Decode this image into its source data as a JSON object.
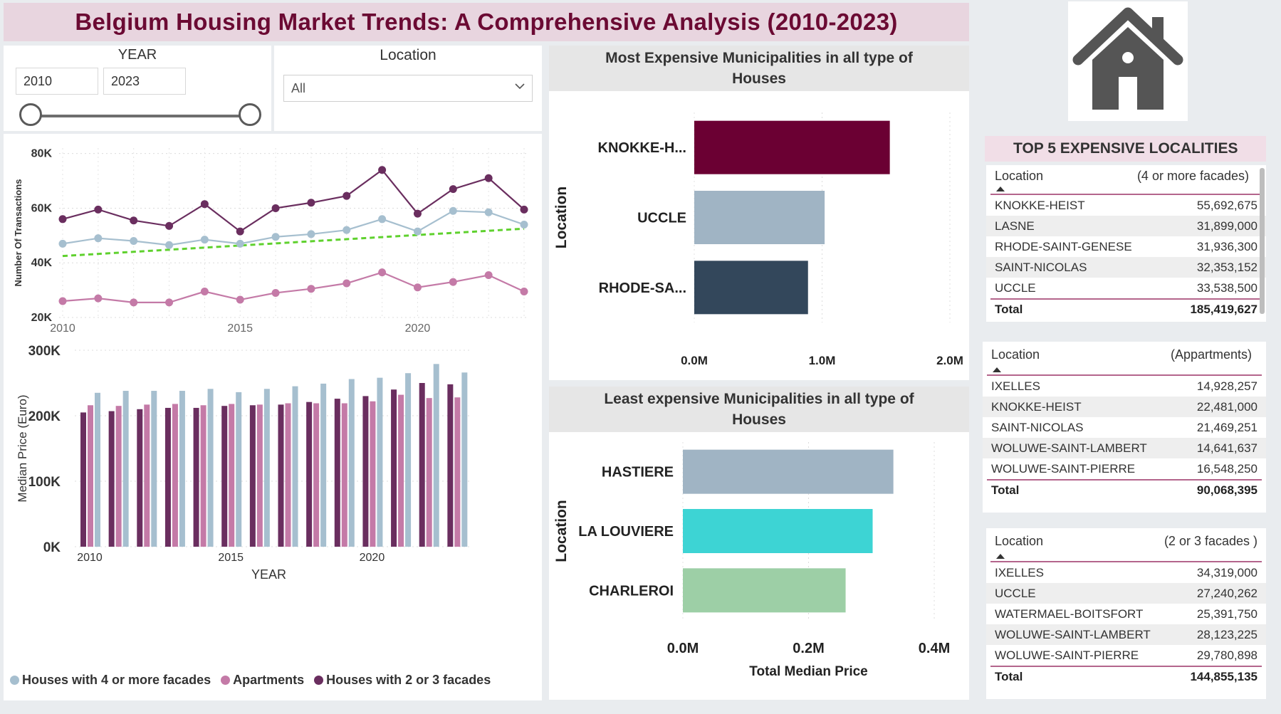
{
  "title": "Belgium Housing Market Trends: A Comprehensive Analysis (2010-2023)",
  "colors": {
    "houses4": "#a6bfcf",
    "apartments": "#c47aa7",
    "houses23": "#6a2e5f",
    "trend": "#5fd12e",
    "accent": "#6b0033",
    "slate": "#33475b",
    "teal": "#3dd4d4",
    "green": "#9dcfa6"
  },
  "year_slicer": {
    "label": "YEAR",
    "from": "2010",
    "to": "2023"
  },
  "location_slicer": {
    "label": "Location",
    "value": "All"
  },
  "icon": "house-icon",
  "line_chart": {
    "type": "line",
    "ylabel": "Number Of Transactions",
    "x": [
      2010,
      2011,
      2012,
      2013,
      2014,
      2015,
      2016,
      2017,
      2018,
      2019,
      2020,
      2021,
      2022,
      2023
    ],
    "x_ticks": [
      "2010",
      "2015",
      "2020"
    ],
    "y_ticks": [
      "20K",
      "40K",
      "60K",
      "80K"
    ],
    "ylim": [
      20000,
      82000
    ],
    "series": [
      {
        "key": "houses23",
        "values": [
          56000,
          59500,
          55500,
          53500,
          61500,
          51500,
          60000,
          62000,
          64500,
          74000,
          58000,
          67000,
          71000,
          59500
        ]
      },
      {
        "key": "houses4",
        "values": [
          47000,
          49000,
          48000,
          46500,
          48500,
          47000,
          49500,
          50500,
          52000,
          56000,
          51500,
          59000,
          58500,
          54000
        ]
      },
      {
        "key": "apartments",
        "values": [
          26000,
          27000,
          25500,
          25500,
          29500,
          26500,
          29000,
          30500,
          32500,
          36500,
          31000,
          33000,
          35500,
          29500
        ]
      }
    ],
    "trendline": [
      42500,
      52500
    ]
  },
  "bar_chart": {
    "type": "bar",
    "ylabel": "Median Price (Euro)",
    "xlabel": "YEAR",
    "x": [
      2010,
      2011,
      2012,
      2013,
      2014,
      2015,
      2016,
      2017,
      2018,
      2019,
      2020,
      2021,
      2022,
      2023
    ],
    "x_ticks": [
      "2010",
      "2015",
      "2020"
    ],
    "y_ticks": [
      "0K",
      "100K",
      "200K",
      "300K"
    ],
    "ylim": [
      0,
      300000
    ],
    "series": [
      {
        "name": "Houses with 2 or 3 facades",
        "key": "houses23",
        "values": [
          205000,
          207000,
          210000,
          212000,
          212000,
          215000,
          216000,
          217000,
          221000,
          226000,
          230000,
          240000,
          250000,
          248000
        ]
      },
      {
        "name": "Apartments",
        "key": "apartments",
        "values": [
          216000,
          215000,
          217000,
          218000,
          216000,
          218000,
          217000,
          219000,
          219000,
          219000,
          222000,
          232000,
          227000,
          228000
        ]
      },
      {
        "name": "Houses with 4 or more facades",
        "key": "houses4",
        "values": [
          235000,
          238000,
          238000,
          238000,
          241000,
          236000,
          241000,
          245000,
          249000,
          256000,
          258000,
          265000,
          279000,
          266000
        ]
      }
    ],
    "legend": [
      {
        "label": "Houses with 4 or more facades",
        "key": "houses4"
      },
      {
        "label": "Apartments",
        "key": "apartments"
      },
      {
        "label": "Houses with 2 or 3 facades",
        "key": "houses23"
      }
    ]
  },
  "most_expensive": {
    "title": "Most Expensive Municipalities in all type of Houses",
    "type": "bar",
    "ylabel": "Location",
    "categories": [
      "KNOKKE-H...",
      "UCCLE",
      "RHODE-SA..."
    ],
    "values": [
      1.53,
      1.02,
      0.89
    ],
    "colors": [
      "#6b0033",
      "#a0b4c4",
      "#33475b"
    ],
    "x_ticks": [
      "0.0M",
      "1.0M",
      "2.0M"
    ],
    "xlim": [
      0,
      2.0
    ]
  },
  "least_expensive": {
    "title": "Least expensive Municipalities in all type of Houses",
    "type": "bar",
    "ylabel": "Location",
    "xlabel": "Total Median Price",
    "categories": [
      "HASTIERE",
      "LA LOUVIERE",
      "CHARLEROI"
    ],
    "values": [
      0.335,
      0.302,
      0.259
    ],
    "colors": [
      "#a0b4c4",
      "#3dd4d4",
      "#9dcfa6"
    ],
    "x_ticks": [
      "0.0M",
      "0.2M",
      "0.4M"
    ],
    "xlim": [
      0,
      0.4
    ]
  },
  "tables": {
    "heading": "TOP 5 EXPENSIVE LOCALITIES",
    "t1": {
      "col1": "Location",
      "col2": "(4 or more facades)",
      "rows": [
        [
          "KNOKKE-HEIST",
          "55,692,675"
        ],
        [
          "LASNE",
          "31,899,000"
        ],
        [
          "RHODE-SAINT-GENESE",
          "31,936,300"
        ],
        [
          "SAINT-NICOLAS",
          "32,353,152"
        ],
        [
          "UCCLE",
          "33,538,500"
        ]
      ],
      "total_label": "Total",
      "total": "185,419,627"
    },
    "t2": {
      "col1": "Location",
      "col2": "(Appartments)",
      "rows": [
        [
          "IXELLES",
          "14,928,257"
        ],
        [
          "KNOKKE-HEIST",
          "22,481,000"
        ],
        [
          "SAINT-NICOLAS",
          "21,469,251"
        ],
        [
          "WOLUWE-SAINT-LAMBERT",
          "14,641,637"
        ],
        [
          "WOLUWE-SAINT-PIERRE",
          "16,548,250"
        ]
      ],
      "total_label": "Total",
      "total": "90,068,395"
    },
    "t3": {
      "col1": "Location",
      "col2": "(2 or 3 facades )",
      "rows": [
        [
          "IXELLES",
          "34,319,000"
        ],
        [
          "UCCLE",
          "27,240,262"
        ],
        [
          "WATERMAEL-BOITSFORT",
          "25,391,750"
        ],
        [
          "WOLUWE-SAINT-LAMBERT",
          "28,123,225"
        ],
        [
          "WOLUWE-SAINT-PIERRE",
          "29,780,898"
        ]
      ],
      "total_label": "Total",
      "total": "144,855,135"
    }
  }
}
